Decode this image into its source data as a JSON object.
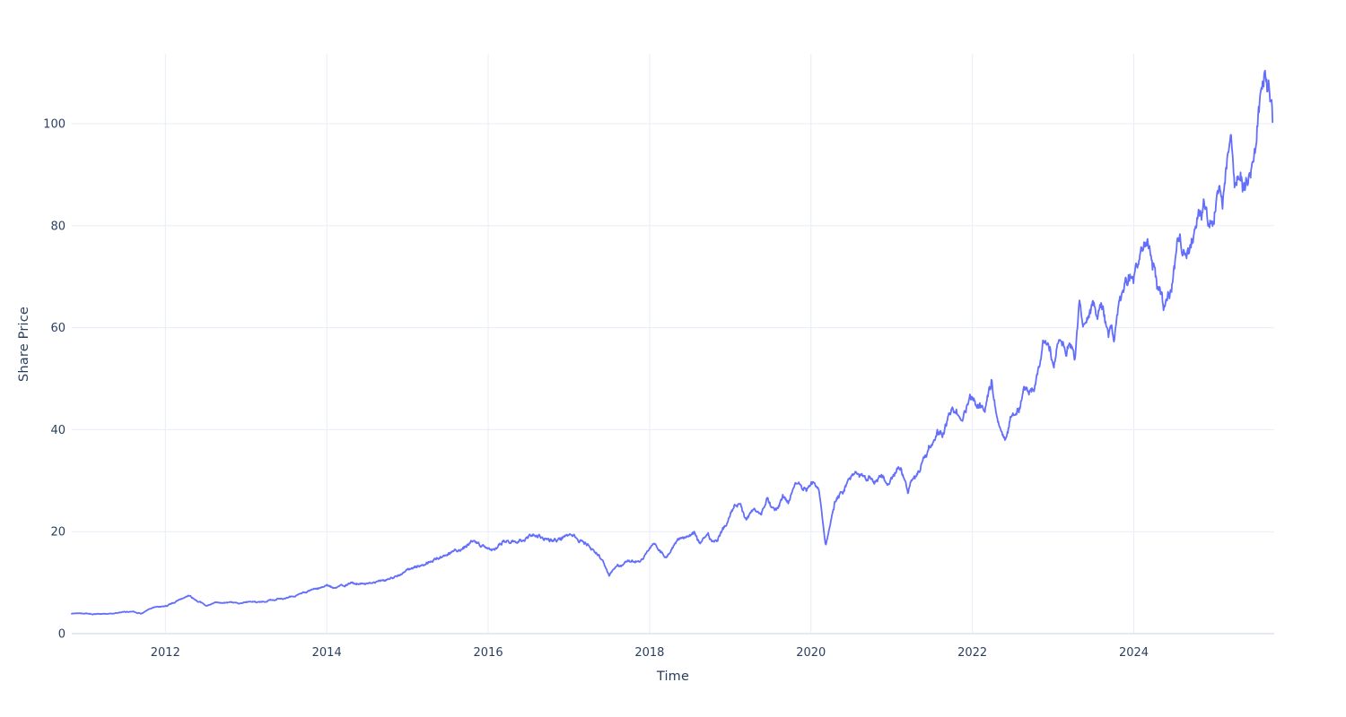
{
  "page": {
    "background": "#FFFFFF"
  },
  "chart_data": {
    "type": "line",
    "title": "",
    "xlabel": "Time",
    "ylabel": "Share Price",
    "legend": {
      "visible": false
    },
    "grid": true,
    "x_axis": {
      "ticks": [
        2012,
        2014,
        2016,
        2018,
        2020,
        2022,
        2024
      ],
      "tick_labels": [
        "2012",
        "2014",
        "2016",
        "2018",
        "2020",
        "2022",
        "2024"
      ],
      "range": [
        2010.84,
        2025.74
      ]
    },
    "y_axis": {
      "ticks": [
        0,
        20,
        40,
        60,
        80,
        100
      ],
      "tick_labels": [
        "0",
        "20",
        "40",
        "60",
        "80",
        "100"
      ],
      "range": [
        0,
        113.7
      ],
      "zeroline": true
    },
    "style": {
      "line_color": "#636EFA",
      "line_width": 1.8,
      "grid_color": "#E8EDF6",
      "zeroline_color": "#E4E9F2",
      "label_color": "#2A3F5F",
      "background": "#FFFFFF"
    },
    "series": [
      {
        "name": "Share Price",
        "keypoints": [
          [
            2010.84,
            3.9
          ],
          [
            2010.95,
            4.1
          ],
          [
            2011.1,
            3.8
          ],
          [
            2011.25,
            3.9
          ],
          [
            2011.45,
            4.1
          ],
          [
            2011.6,
            4.4
          ],
          [
            2011.7,
            4.0
          ],
          [
            2011.85,
            5.1
          ],
          [
            2012.0,
            5.5
          ],
          [
            2012.1,
            6.0
          ],
          [
            2012.25,
            7.2
          ],
          [
            2012.31,
            7.4
          ],
          [
            2012.4,
            6.4
          ],
          [
            2012.51,
            5.4
          ],
          [
            2012.65,
            6.1
          ],
          [
            2012.8,
            5.9
          ],
          [
            2013.0,
            6.1
          ],
          [
            2013.2,
            6.4
          ],
          [
            2013.45,
            6.9
          ],
          [
            2013.6,
            7.4
          ],
          [
            2013.75,
            8.2
          ],
          [
            2013.9,
            8.8
          ],
          [
            2014.0,
            9.5
          ],
          [
            2014.1,
            8.8
          ],
          [
            2014.3,
            9.9
          ],
          [
            2014.45,
            9.8
          ],
          [
            2014.6,
            10.2
          ],
          [
            2014.75,
            10.4
          ],
          [
            2014.85,
            11.5
          ],
          [
            2015.0,
            12.4
          ],
          [
            2015.15,
            13.2
          ],
          [
            2015.3,
            14.2
          ],
          [
            2015.45,
            15.4
          ],
          [
            2015.6,
            16.4
          ],
          [
            2015.75,
            17.5
          ],
          [
            2015.85,
            18.2
          ],
          [
            2015.95,
            16.9
          ],
          [
            2016.05,
            16.1
          ],
          [
            2016.2,
            17.9
          ],
          [
            2016.35,
            18.4
          ],
          [
            2016.5,
            19.0
          ],
          [
            2016.62,
            19.5
          ],
          [
            2016.75,
            18.4
          ],
          [
            2016.9,
            18.7
          ],
          [
            2017.05,
            18.9
          ],
          [
            2017.18,
            18.3
          ],
          [
            2017.25,
            17.6
          ],
          [
            2017.33,
            15.8
          ],
          [
            2017.42,
            13.9
          ],
          [
            2017.5,
            11.4
          ],
          [
            2017.6,
            13.5
          ],
          [
            2017.75,
            13.9
          ],
          [
            2017.88,
            14.6
          ],
          [
            2018.0,
            16.6
          ],
          [
            2018.07,
            17.9
          ],
          [
            2018.2,
            15.0
          ],
          [
            2018.35,
            18.3
          ],
          [
            2018.5,
            19.1
          ],
          [
            2018.56,
            20.0
          ],
          [
            2018.62,
            17.7
          ],
          [
            2018.72,
            19.6
          ],
          [
            2018.78,
            17.8
          ],
          [
            2018.9,
            20.2
          ],
          [
            2019.05,
            24.5
          ],
          [
            2019.12,
            25.4
          ],
          [
            2019.2,
            22.4
          ],
          [
            2019.3,
            24.3
          ],
          [
            2019.38,
            22.9
          ],
          [
            2019.45,
            26.1
          ],
          [
            2019.55,
            23.6
          ],
          [
            2019.65,
            26.6
          ],
          [
            2019.72,
            25.6
          ],
          [
            2019.8,
            29.0
          ],
          [
            2019.92,
            28.7
          ],
          [
            2020.0,
            29.0
          ],
          [
            2020.1,
            29.2
          ],
          [
            2020.18,
            17.3
          ],
          [
            2020.24,
            21.5
          ],
          [
            2020.3,
            26.3
          ],
          [
            2020.42,
            28.6
          ],
          [
            2020.56,
            32.0
          ],
          [
            2020.66,
            31.2
          ],
          [
            2020.76,
            29.9
          ],
          [
            2020.86,
            30.6
          ],
          [
            2020.96,
            29.4
          ],
          [
            2021.1,
            32.8
          ],
          [
            2021.2,
            28.6
          ],
          [
            2021.3,
            31.0
          ],
          [
            2021.42,
            34.5
          ],
          [
            2021.5,
            37.8
          ],
          [
            2021.56,
            40.6
          ],
          [
            2021.63,
            39.4
          ],
          [
            2021.72,
            42.6
          ],
          [
            2021.8,
            44.0
          ],
          [
            2021.88,
            41.7
          ],
          [
            2021.97,
            46.3
          ],
          [
            2022.05,
            44.1
          ],
          [
            2022.15,
            45.0
          ],
          [
            2022.24,
            49.7
          ],
          [
            2022.3,
            41.8
          ],
          [
            2022.4,
            38.4
          ],
          [
            2022.5,
            43.0
          ],
          [
            2022.58,
            44.7
          ],
          [
            2022.64,
            48.6
          ],
          [
            2022.7,
            47.1
          ],
          [
            2022.78,
            48.8
          ],
          [
            2022.86,
            55.0
          ],
          [
            2022.93,
            57.6
          ],
          [
            2023.0,
            53.7
          ],
          [
            2023.08,
            57.4
          ],
          [
            2023.15,
            54.9
          ],
          [
            2023.2,
            56.8
          ],
          [
            2023.27,
            53.2
          ],
          [
            2023.33,
            64.3
          ],
          [
            2023.4,
            59.3
          ],
          [
            2023.48,
            64.8
          ],
          [
            2023.54,
            61.4
          ],
          [
            2023.6,
            63.6
          ],
          [
            2023.68,
            58.2
          ],
          [
            2023.72,
            60.0
          ],
          [
            2023.76,
            58.1
          ],
          [
            2023.83,
            65.8
          ],
          [
            2023.9,
            68.3
          ],
          [
            2024.0,
            69.5
          ],
          [
            2024.08,
            72.8
          ],
          [
            2024.17,
            77.8
          ],
          [
            2024.26,
            71.1
          ],
          [
            2024.31,
            67.3
          ],
          [
            2024.37,
            64.2
          ],
          [
            2024.45,
            65.9
          ],
          [
            2024.52,
            72.5
          ],
          [
            2024.56,
            75.5
          ],
          [
            2024.63,
            73.6
          ],
          [
            2024.71,
            77.2
          ],
          [
            2024.79,
            81.3
          ],
          [
            2024.87,
            84.8
          ],
          [
            2024.93,
            79.9
          ],
          [
            2025.0,
            83.9
          ],
          [
            2025.06,
            89.2
          ],
          [
            2025.1,
            85.7
          ],
          [
            2025.16,
            93.4
          ],
          [
            2025.2,
            95.9
          ],
          [
            2025.25,
            88.4
          ],
          [
            2025.3,
            91.8
          ],
          [
            2025.35,
            87.9
          ],
          [
            2025.42,
            90.6
          ],
          [
            2025.48,
            93.1
          ],
          [
            2025.53,
            99.5
          ],
          [
            2025.58,
            104.5
          ],
          [
            2025.62,
            107.8
          ],
          [
            2025.65,
            103.6
          ],
          [
            2025.67,
            107.4
          ],
          [
            2025.72,
            100.3
          ]
        ]
      }
    ]
  }
}
